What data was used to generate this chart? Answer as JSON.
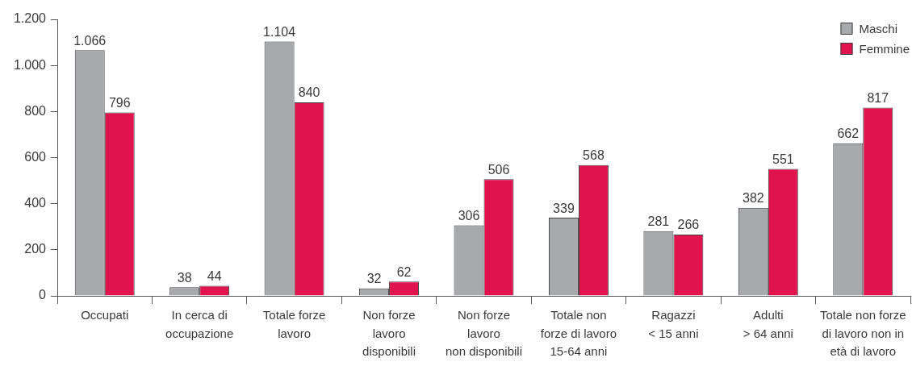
{
  "chart_data": {
    "type": "bar",
    "categories": [
      "Occupati",
      "In cerca di\noccupazione",
      "Totale forze\nlavoro",
      "Non forze\nlavoro\ndisponibili",
      "Non forze\nlavoro\nnon disponibili",
      "Totale non\nforze di lavoro\n15-64 anni",
      "Ragazzi\n< 15 anni",
      "Adulti\n> 64 anni",
      "Totale non forze\ndi lavoro non in\netà di lavoro"
    ],
    "series": [
      {
        "name": "Maschi",
        "color": "#a7a9ac",
        "values": [
          1066,
          38,
          1104,
          32,
          306,
          339,
          281,
          382,
          662
        ],
        "value_labels": [
          "1.066",
          "38",
          "1.104",
          "32",
          "306",
          "339",
          "281",
          "382",
          "662"
        ]
      },
      {
        "name": "Femmine",
        "color": "#e1134f",
        "values": [
          796,
          44,
          840,
          62,
          506,
          568,
          266,
          551,
          817
        ],
        "value_labels": [
          "796",
          "44",
          "840",
          "62",
          "506",
          "568",
          "266",
          "551",
          "817"
        ]
      }
    ],
    "ylim": [
      0,
      1200
    ],
    "yticks": [
      0,
      200,
      400,
      600,
      800,
      {
        "value": 1000,
        "label": "1.000"
      },
      {
        "value": 1200,
        "label": "1.200"
      }
    ],
    "legend": "top right"
  }
}
